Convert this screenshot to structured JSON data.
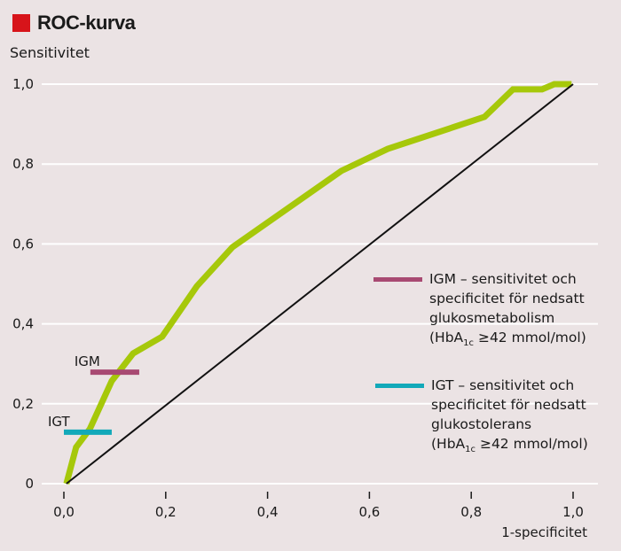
{
  "header": {
    "title": "ROC-kurva",
    "accent_color": "#d7141a"
  },
  "chart_data": {
    "type": "line",
    "title": "ROC-kurva",
    "xlabel": "1-specificitet",
    "ylabel": "Sensitivitet",
    "xlim": [
      0,
      1
    ],
    "ylim": [
      0,
      1
    ],
    "grid": "horizontal",
    "x_ticks": [
      "0,0",
      "0,2",
      "0,4",
      "0,6",
      "0,8",
      "1,0"
    ],
    "x_tick_values": [
      0,
      0.2,
      0.4,
      0.6,
      0.8,
      1.0
    ],
    "y_ticks": [
      "0",
      "0,2",
      "0,4",
      "0,6",
      "0,8",
      "1,0"
    ],
    "y_tick_values": [
      0,
      0.2,
      0.4,
      0.6,
      0.8,
      1.0
    ],
    "series": [
      {
        "name": "ROC",
        "color": "#a6c80a",
        "x": [
          0.005,
          0.024,
          0.051,
          0.094,
          0.136,
          0.193,
          0.261,
          0.331,
          0.545,
          0.636,
          0.826,
          0.882,
          0.939,
          0.963,
          0.997
        ],
        "y": [
          0.0,
          0.091,
          0.137,
          0.257,
          0.326,
          0.368,
          0.494,
          0.592,
          0.783,
          0.838,
          0.918,
          0.987,
          0.987,
          1.0,
          1.0
        ]
      },
      {
        "name": "Referenslinje",
        "color": "#111111",
        "x": [
          0.005,
          1.0
        ],
        "y": [
          0.0,
          1.0
        ]
      }
    ],
    "markers": [
      {
        "label": "IGM",
        "color": "#a84a72",
        "x_from": 0.052,
        "x_to": 0.148,
        "y": 0.279
      },
      {
        "label": "IGT",
        "color": "#12a9b9",
        "x_from": 0.0,
        "x_to": 0.094,
        "y": 0.129
      }
    ],
    "legend": [
      {
        "color": "#a84a72",
        "lines": [
          "IGM – sensitivitet och",
          "specificitet för nedsatt",
          "glukosmetabolism"
        ],
        "unit_prefix": "(HbA",
        "unit_sub": "1c",
        "unit_suffix": " ≥42 mmol/mol)"
      },
      {
        "color": "#12a9b9",
        "lines": [
          "IGT – sensitivitet och",
          "specificitet för nedsatt",
          "glukostolerans"
        ],
        "unit_prefix": "(HbA",
        "unit_sub": "1c",
        "unit_suffix": " ≥42 mmol/mol)"
      }
    ],
    "legend_position": "right"
  }
}
